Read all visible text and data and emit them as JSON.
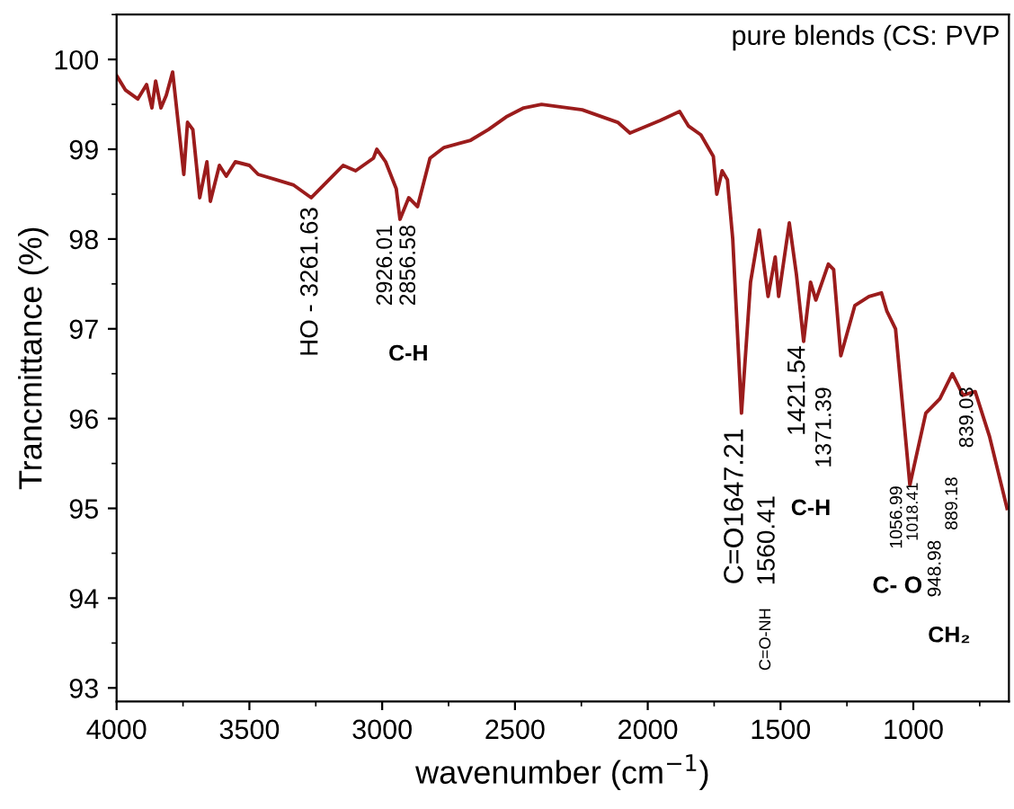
{
  "chart_data": {
    "type": "line",
    "title": "pure blends (CS: PVP",
    "xlabel": "wavenumber (cm$^{−1}$)",
    "ylabel": "Trancmittance (%)",
    "xlim": [
      4000,
      640
    ],
    "xticks": [
      4000,
      3500,
      3000,
      2500,
      2000,
      1500,
      1000
    ],
    "ylim": [
      92.85,
      100.5
    ],
    "yticks": [
      93,
      94,
      95,
      96,
      97,
      98,
      99,
      100
    ],
    "grid": false,
    "marker": "none",
    "line_style": "solid",
    "series": [
      {
        "color": "#9b1c1c",
        "x": [
          4000,
          3967,
          3920,
          3887,
          3867,
          3853,
          3833,
          3813,
          3789,
          3747,
          3733,
          3713,
          3687,
          3660,
          3647,
          3613,
          3587,
          3553,
          3500,
          3467,
          3400,
          3333,
          3267,
          3200,
          3147,
          3100,
          3033,
          3020,
          2987,
          2947,
          2933,
          2900,
          2867,
          2820,
          2767,
          2667,
          2600,
          2533,
          2467,
          2400,
          2247,
          2113,
          2067,
          1953,
          1880,
          1847,
          1800,
          1753,
          1740,
          1720,
          1700,
          1680,
          1647,
          1613,
          1580,
          1547,
          1520,
          1507,
          1467,
          1440,
          1413,
          1387,
          1367,
          1320,
          1300,
          1273,
          1220,
          1167,
          1120,
          1100,
          1067,
          1013,
          953,
          933,
          900,
          853,
          813,
          767,
          713,
          680,
          647
        ],
        "values": [
          99.82,
          99.66,
          99.56,
          99.72,
          99.46,
          99.76,
          99.46,
          99.6,
          99.86,
          98.72,
          99.3,
          99.22,
          98.46,
          98.86,
          98.42,
          98.82,
          98.7,
          98.86,
          98.82,
          98.72,
          98.66,
          98.6,
          98.46,
          98.66,
          98.82,
          98.76,
          98.9,
          99.0,
          98.86,
          98.56,
          98.22,
          98.46,
          98.36,
          98.9,
          99.02,
          99.1,
          99.22,
          99.36,
          99.46,
          99.5,
          99.44,
          99.3,
          99.18,
          99.32,
          99.42,
          99.26,
          99.16,
          98.92,
          98.5,
          98.76,
          98.66,
          98.0,
          96.06,
          97.52,
          98.1,
          97.36,
          97.8,
          97.36,
          98.18,
          97.6,
          96.86,
          97.52,
          97.32,
          97.72,
          97.66,
          96.7,
          97.26,
          97.36,
          97.4,
          97.2,
          97.0,
          95.26,
          96.06,
          96.12,
          96.22,
          96.5,
          96.26,
          96.3,
          95.8,
          95.4,
          95.0
        ]
      }
    ],
    "annotations": [
      "HO - 3261.63",
      "2926.01",
      "2856.58",
      "C-H",
      "C=O1647.21",
      "1560.41",
      "C=O-NH",
      "1421.54",
      "1371.39",
      "C-H",
      "1056.99",
      "1018.41",
      "948.98",
      "889.18",
      "839.03",
      "C- O",
      "CH₂"
    ]
  }
}
